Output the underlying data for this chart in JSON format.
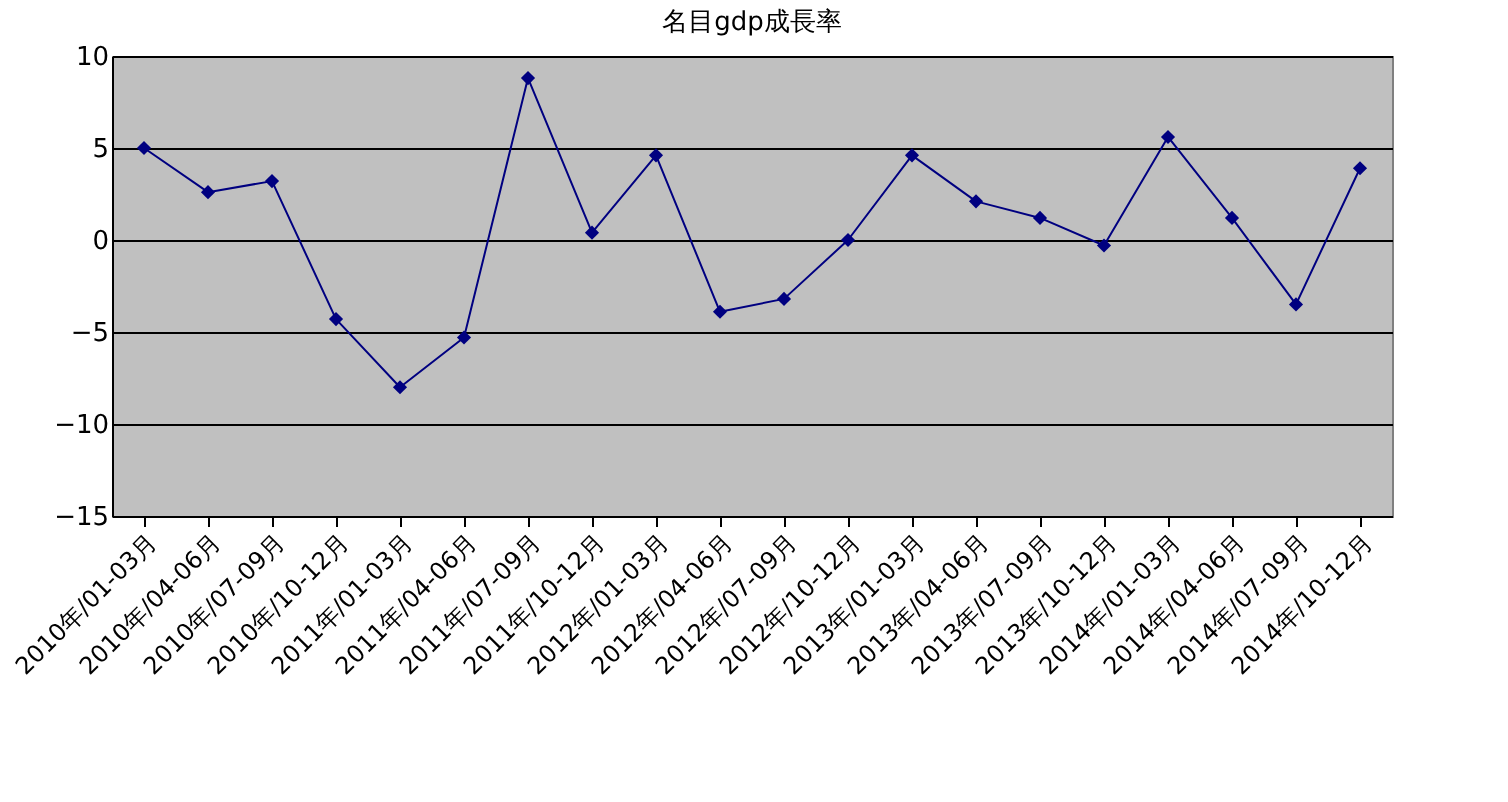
{
  "chart_data": {
    "type": "line",
    "title": "名目gdp成長率",
    "categories": [
      "2010年/01-03月",
      "2010年/04-06月",
      "2010年/07-09月",
      "2010年/10-12月",
      "2011年/01-03月",
      "2011年/04-06月",
      "2011年/07-09月",
      "2011年/10-12月",
      "2012年/01-03月",
      "2012年/04-06月",
      "2012年/07-09月",
      "2012年/10-12月",
      "2013年/01-03月",
      "2013年/04-06月",
      "2013年/07-09月",
      "2013年/10-12月",
      "2014年/01-03月",
      "2014年/04-06月",
      "2014年/07-09月",
      "2014年/10-12月"
    ],
    "series": [
      {
        "color": "#000080",
        "values": [
          5.0,
          2.6,
          3.2,
          -4.3,
          -8.0,
          -5.3,
          8.8,
          0.4,
          4.6,
          -3.9,
          -3.2,
          0.0,
          4.6,
          2.1,
          1.2,
          -0.3,
          5.6,
          1.2,
          -3.5,
          3.9
        ]
      }
    ],
    "ylim": [
      -15,
      10
    ],
    "yticks": [
      -15,
      -10,
      -5,
      0,
      5,
      10
    ],
    "grid": "y",
    "marker": "diamond",
    "line_style": "solid"
  }
}
